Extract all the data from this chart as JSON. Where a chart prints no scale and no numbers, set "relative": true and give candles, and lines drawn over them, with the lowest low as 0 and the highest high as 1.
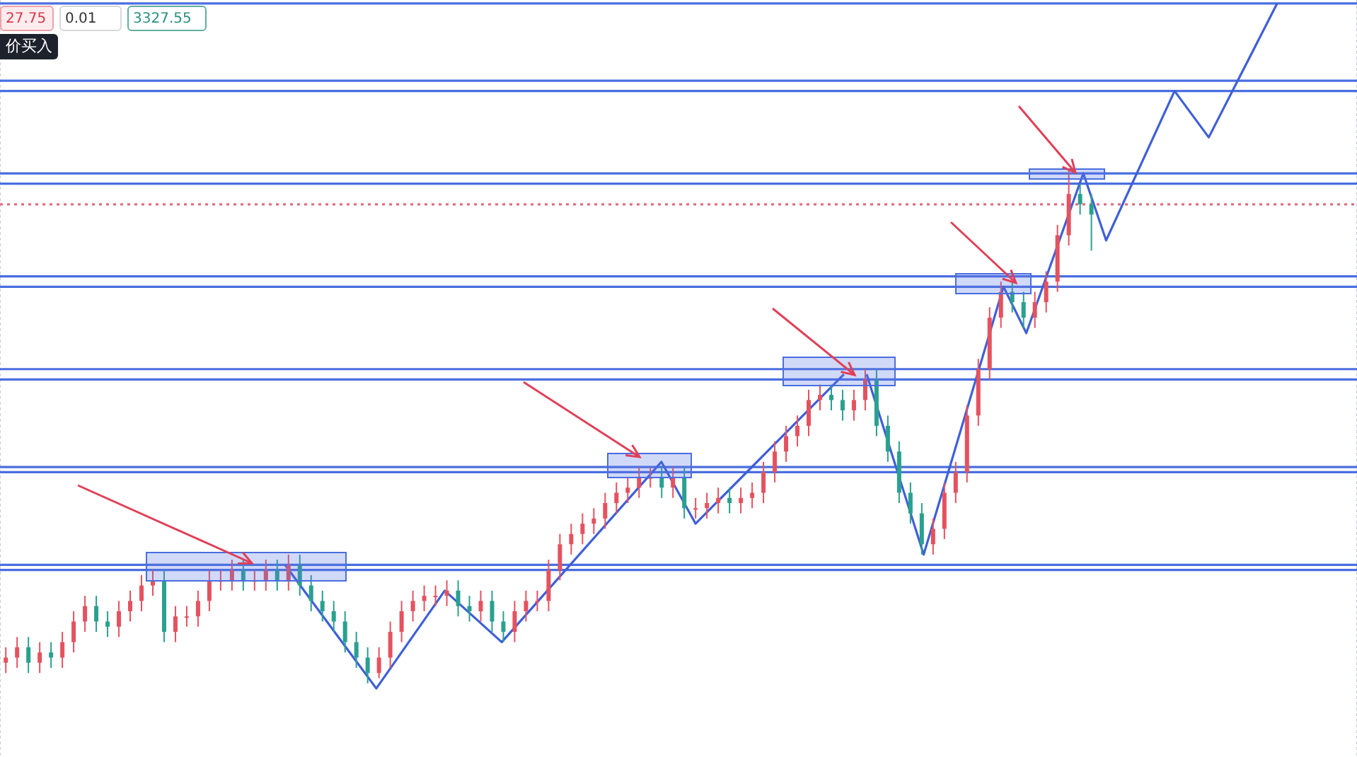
{
  "chart_data": {
    "type": "candlestick",
    "relative": true,
    "tick_labels": false,
    "grid": "x",
    "categories": [
      null,
      null,
      null,
      null,
      null,
      null,
      null,
      null,
      null,
      null,
      null,
      null,
      null,
      null,
      null,
      null,
      null,
      null,
      null,
      null,
      null,
      null,
      null,
      null,
      null,
      null,
      null,
      null,
      null,
      null,
      null,
      null,
      null,
      null,
      null,
      null,
      null,
      null,
      null,
      null,
      null,
      null,
      null,
      null,
      null,
      null,
      null,
      null,
      null,
      null,
      null,
      null,
      null,
      null,
      null,
      null,
      null,
      null,
      null,
      null,
      null,
      null,
      null,
      null,
      null,
      null,
      null,
      null,
      null,
      null,
      null,
      null,
      null,
      null,
      null,
      null,
      null,
      null,
      null,
      null,
      null,
      null,
      null,
      null,
      null,
      null,
      null,
      null,
      null,
      null,
      null,
      null,
      null,
      null,
      null,
      null,
      null,
      null,
      null,
      null,
      null,
      null,
      null,
      null,
      null,
      null,
      null,
      null,
      null,
      null,
      null,
      null,
      null,
      null,
      null,
      null,
      null,
      null,
      null,
      null
    ],
    "colors": [
      "#e5525f",
      "#e5525f",
      "#2aa08f",
      "#e5525f",
      "#2aa08f",
      "#e5525f",
      "#e5525f",
      "#e5525f",
      "#2aa08f",
      "#2aa08f",
      "#e5525f",
      "#e5525f",
      "#e5525f",
      "#e5525f",
      "#2aa08f",
      "#e5525f",
      "#e5525f",
      "#e5525f",
      "#e5525f",
      "#e5525f",
      "#e5525f",
      "#2aa08f",
      "#e5525f",
      "#e5525f",
      "#2aa08f",
      "#e5525f",
      "#2aa08f",
      "#2aa08f",
      "#2aa08f",
      "#2aa08f",
      "#2aa08f",
      "#2aa08f",
      "#2aa08f",
      "#e5525f",
      "#e5525f",
      "#e5525f",
      "#e5525f",
      "#e5525f",
      "#e5525f",
      "#e5525f",
      "#2aa08f",
      "#2aa08f",
      "#e5525f",
      "#2aa08f",
      "#2aa08f",
      "#e5525f",
      "#e5525f",
      "#e5525f",
      "#e5525f",
      "#e5525f",
      "#e5525f",
      "#e5525f",
      "#e5525f",
      "#e5525f",
      "#e5525f",
      "#e5525f",
      "#e5525f",
      "#e5525f",
      "#2aa08f",
      "#e5525f",
      "#2aa08f",
      "#e5525f",
      "#e5525f",
      "#e5525f",
      "#2aa08f",
      "#e5525f",
      "#e5525f",
      "#e5525f",
      "#e5525f",
      "#e5525f",
      "#e5525f",
      "#e5525f",
      "#e5525f",
      "#2aa08f",
      "#2aa08f",
      "#e5525f",
      "#e5525f",
      "#2aa08f",
      "#2aa08f",
      "#2aa08f",
      "#2aa08f",
      "#2aa08f",
      "#e5525f",
      "#e5525f",
      "#e5525f",
      "#e5525f",
      "#e5525f",
      "#e5525f",
      "#e5525f",
      "#2aa08f",
      "#2aa08f",
      "#e5525f",
      "#e5525f",
      "#e5525f",
      "#e5525f",
      "#2aa08f",
      "#2aa08f",
      null,
      null,
      null,
      null,
      null,
      null,
      null,
      null,
      null,
      null,
      null,
      null,
      null,
      null,
      null,
      null,
      null,
      null,
      null,
      null,
      null,
      null,
      null
    ],
    "ohlc": [
      [
        0.04,
        0.07,
        0.02,
        0.05
      ],
      [
        0.05,
        0.09,
        0.03,
        0.07
      ],
      [
        0.07,
        0.09,
        0.02,
        0.04
      ],
      [
        0.04,
        0.08,
        0.02,
        0.06
      ],
      [
        0.06,
        0.08,
        0.03,
        0.05
      ],
      [
        0.05,
        0.1,
        0.03,
        0.08
      ],
      [
        0.08,
        0.14,
        0.06,
        0.12
      ],
      [
        0.12,
        0.17,
        0.1,
        0.15
      ],
      [
        0.15,
        0.17,
        0.1,
        0.12
      ],
      [
        0.12,
        0.14,
        0.09,
        0.11
      ],
      [
        0.11,
        0.16,
        0.09,
        0.14
      ],
      [
        0.14,
        0.18,
        0.12,
        0.16
      ],
      [
        0.16,
        0.21,
        0.14,
        0.19
      ],
      [
        0.19,
        0.22,
        0.17,
        0.2
      ],
      [
        0.2,
        0.22,
        0.08,
        0.1
      ],
      [
        0.1,
        0.15,
        0.08,
        0.13
      ],
      [
        0.13,
        0.15,
        0.11,
        0.13
      ],
      [
        0.13,
        0.18,
        0.11,
        0.16
      ],
      [
        0.16,
        0.22,
        0.14,
        0.2
      ],
      [
        0.2,
        0.22,
        0.18,
        0.2
      ],
      [
        0.2,
        0.24,
        0.18,
        0.22
      ],
      [
        0.22,
        0.24,
        0.18,
        0.2
      ],
      [
        0.2,
        0.22,
        0.18,
        0.2
      ],
      [
        0.2,
        0.24,
        0.18,
        0.22
      ],
      [
        0.22,
        0.24,
        0.18,
        0.2
      ],
      [
        0.2,
        0.25,
        0.18,
        0.23
      ],
      [
        0.23,
        0.25,
        0.17,
        0.19
      ],
      [
        0.19,
        0.21,
        0.14,
        0.16
      ],
      [
        0.16,
        0.18,
        0.12,
        0.14
      ],
      [
        0.14,
        0.16,
        0.1,
        0.12
      ],
      [
        0.12,
        0.14,
        0.06,
        0.08
      ],
      [
        0.08,
        0.1,
        0.03,
        0.05
      ],
      [
        0.05,
        0.07,
        0,
        0.02
      ],
      [
        0.02,
        0.07,
        0.01,
        0.05
      ],
      [
        0.05,
        0.12,
        0.03,
        0.1
      ],
      [
        0.1,
        0.16,
        0.08,
        0.14
      ],
      [
        0.14,
        0.18,
        0.12,
        0.16
      ],
      [
        0.16,
        0.19,
        0.14,
        0.17
      ],
      [
        0.17,
        0.19,
        0.15,
        0.17
      ],
      [
        0.17,
        0.2,
        0.15,
        0.18
      ],
      [
        0.18,
        0.2,
        0.13,
        0.15
      ],
      [
        0.15,
        0.17,
        0.12,
        0.14
      ],
      [
        0.14,
        0.18,
        0.12,
        0.16
      ],
      [
        0.16,
        0.18,
        0.1,
        0.12
      ],
      [
        0.12,
        0.14,
        0.08,
        0.1
      ],
      [
        0.1,
        0.16,
        0.08,
        0.14
      ],
      [
        0.14,
        0.18,
        0.12,
        0.16
      ],
      [
        0.16,
        0.18,
        0.14,
        0.16
      ],
      [
        0.16,
        0.24,
        0.14,
        0.22
      ],
      [
        0.22,
        0.29,
        0.2,
        0.27
      ],
      [
        0.27,
        0.31,
        0.25,
        0.29
      ],
      [
        0.29,
        0.33,
        0.27,
        0.31
      ],
      [
        0.31,
        0.34,
        0.29,
        0.32
      ],
      [
        0.32,
        0.37,
        0.3,
        0.35
      ],
      [
        0.35,
        0.39,
        0.33,
        0.37
      ],
      [
        0.37,
        0.4,
        0.35,
        0.38
      ],
      [
        0.38,
        0.42,
        0.36,
        0.4
      ],
      [
        0.4,
        0.42,
        0.38,
        0.4
      ],
      [
        0.4,
        0.42,
        0.36,
        0.38
      ],
      [
        0.38,
        0.42,
        0.36,
        0.4
      ],
      [
        0.4,
        0.42,
        0.32,
        0.34
      ],
      [
        0.34,
        0.36,
        0.32,
        0.34
      ],
      [
        0.34,
        0.37,
        0.32,
        0.35
      ],
      [
        0.35,
        0.38,
        0.33,
        0.36
      ],
      [
        0.36,
        0.38,
        0.33,
        0.35
      ],
      [
        0.35,
        0.38,
        0.33,
        0.36
      ],
      [
        0.36,
        0.39,
        0.34,
        0.37
      ],
      [
        0.37,
        0.43,
        0.35,
        0.41
      ],
      [
        0.41,
        0.47,
        0.39,
        0.45
      ],
      [
        0.45,
        0.5,
        0.43,
        0.48
      ],
      [
        0.48,
        0.52,
        0.46,
        0.5
      ],
      [
        0.5,
        0.57,
        0.48,
        0.55
      ],
      [
        0.55,
        0.58,
        0.53,
        0.56
      ],
      [
        0.56,
        0.58,
        0.53,
        0.55
      ],
      [
        0.55,
        0.57,
        0.51,
        0.53
      ],
      [
        0.53,
        0.57,
        0.51,
        0.55
      ],
      [
        0.55,
        0.61,
        0.53,
        0.59
      ],
      [
        0.59,
        0.61,
        0.48,
        0.5
      ],
      [
        0.5,
        0.52,
        0.43,
        0.45
      ],
      [
        0.45,
        0.47,
        0.35,
        0.37
      ],
      [
        0.37,
        0.39,
        0.31,
        0.33
      ],
      [
        0.33,
        0.35,
        0.25,
        0.27
      ],
      [
        0.27,
        0.32,
        0.25,
        0.3
      ],
      [
        0.3,
        0.39,
        0.28,
        0.37
      ],
      [
        0.37,
        0.43,
        0.35,
        0.41
      ],
      [
        0.41,
        0.54,
        0.39,
        0.52
      ],
      [
        0.52,
        0.63,
        0.5,
        0.61
      ],
      [
        0.61,
        0.73,
        0.59,
        0.71
      ],
      [
        0.71,
        0.78,
        0.69,
        0.76
      ],
      [
        0.76,
        0.78,
        0.72,
        0.74
      ],
      [
        0.74,
        0.76,
        0.69,
        0.71
      ],
      [
        0.71,
        0.76,
        0.69,
        0.74
      ],
      [
        0.74,
        0.8,
        0.72,
        0.78
      ],
      [
        0.78,
        0.89,
        0.76,
        0.87
      ],
      [
        0.87,
        1,
        0.85,
        0.95
      ],
      [
        0.95,
        0.97,
        0.91,
        0.93
      ],
      [
        0.93,
        0.95,
        0.84,
        0.91
      ],
      null,
      null,
      null,
      null,
      null,
      null,
      null,
      null,
      null,
      null,
      null,
      null,
      null,
      null,
      null,
      null,
      null,
      null,
      null,
      null,
      null,
      null,
      null
    ],
    "series": [
      {
        "type": "line",
        "color": "#3f5fd8",
        "values": [
          null,
          null,
          null,
          null,
          null,
          null,
          null,
          null,
          null,
          null,
          null,
          null,
          null,
          null,
          null,
          null,
          null,
          null,
          null,
          null,
          null,
          null,
          null,
          null,
          null,
          0.23,
          null,
          null,
          null,
          null,
          null,
          null,
          null,
          -0.01,
          null,
          null,
          null,
          null,
          null,
          0.18,
          null,
          null,
          null,
          null,
          0.08,
          null,
          null,
          null,
          null,
          null,
          null,
          null,
          null,
          null,
          null,
          null,
          null,
          null,
          0.43,
          null,
          null,
          0.31,
          null,
          null,
          null,
          null,
          null,
          null,
          null,
          null,
          null,
          null,
          null,
          null,
          0.6,
          null,
          null,
          null,
          null,
          null,
          null,
          null,
          null,
          null,
          null,
          null,
          null,
          null,
          null,
          null,
          null,
          null,
          null,
          null,
          null,
          null,
          null,
          null,
          null,
          null,
          null,
          null,
          null,
          null,
          null,
          null,
          null,
          null,
          null,
          null,
          null,
          null,
          null,
          null,
          null,
          null,
          null,
          null,
          null,
          null
        ]
      },
      {
        "type": "line",
        "color": "#3f5fd8",
        "values": [
          null,
          null,
          null,
          null,
          null,
          null,
          null,
          null,
          null,
          null,
          null,
          null,
          null,
          null,
          null,
          null,
          null,
          null,
          null,
          null,
          null,
          null,
          null,
          null,
          null,
          null,
          null,
          null,
          null,
          null,
          null,
          null,
          null,
          null,
          null,
          null,
          null,
          null,
          null,
          null,
          null,
          null,
          null,
          null,
          null,
          null,
          null,
          null,
          null,
          null,
          null,
          null,
          null,
          null,
          null,
          null,
          null,
          null,
          null,
          null,
          null,
          null,
          null,
          null,
          null,
          null,
          null,
          null,
          null,
          null,
          null,
          null,
          null,
          null,
          null,
          null,
          0.6,
          null,
          null,
          null,
          null,
          0.25,
          null,
          null,
          null,
          null,
          null,
          null,
          0.77,
          null,
          0.68,
          null,
          null,
          null,
          null,
          0.99,
          null,
          0.86,
          null,
          null,
          null,
          null,
          null,
          1.15,
          null,
          null,
          1.06,
          null,
          null,
          null,
          null,
          null,
          1.32,
          null,
          null,
          null,
          null,
          null,
          null,
          null
        ]
      }
    ],
    "marker": "none",
    "ref_lines": [
      {
        "axis": "y",
        "value": 1.32,
        "color": "#4a6ee0"
      },
      {
        "axis": "y",
        "value": 1.17,
        "color": "#4a6ee0"
      },
      {
        "axis": "y",
        "value": 1.15,
        "color": "#4a6ee0"
      },
      {
        "axis": "y",
        "value": 0.99,
        "color": "#4a6ee0"
      },
      {
        "axis": "y",
        "value": 0.97,
        "color": "#4a6ee0"
      },
      {
        "axis": "y",
        "value": 0.93,
        "color": "#e07080",
        "line_style": "dotted"
      },
      {
        "axis": "y",
        "value": 0.79,
        "color": "#4a6ee0"
      },
      {
        "axis": "y",
        "value": 0.77,
        "color": "#4a6ee0"
      },
      {
        "axis": "y",
        "value": 0.61,
        "color": "#4a6ee0"
      },
      {
        "axis": "y",
        "value": 0.59,
        "color": "#4a6ee0"
      },
      {
        "axis": "y",
        "value": 0.42,
        "color": "#4a6ee0"
      },
      {
        "axis": "y",
        "value": 0.41,
        "color": "#4a6ee0"
      },
      {
        "axis": "y",
        "value": 0.23,
        "color": "#4a6ee0"
      },
      {
        "axis": "y",
        "value": 0.22,
        "color": "#4a6ee0"
      }
    ],
    "annotations": [
      "27.75",
      "0.01",
      "3327.55",
      "价买入"
    ]
  }
}
